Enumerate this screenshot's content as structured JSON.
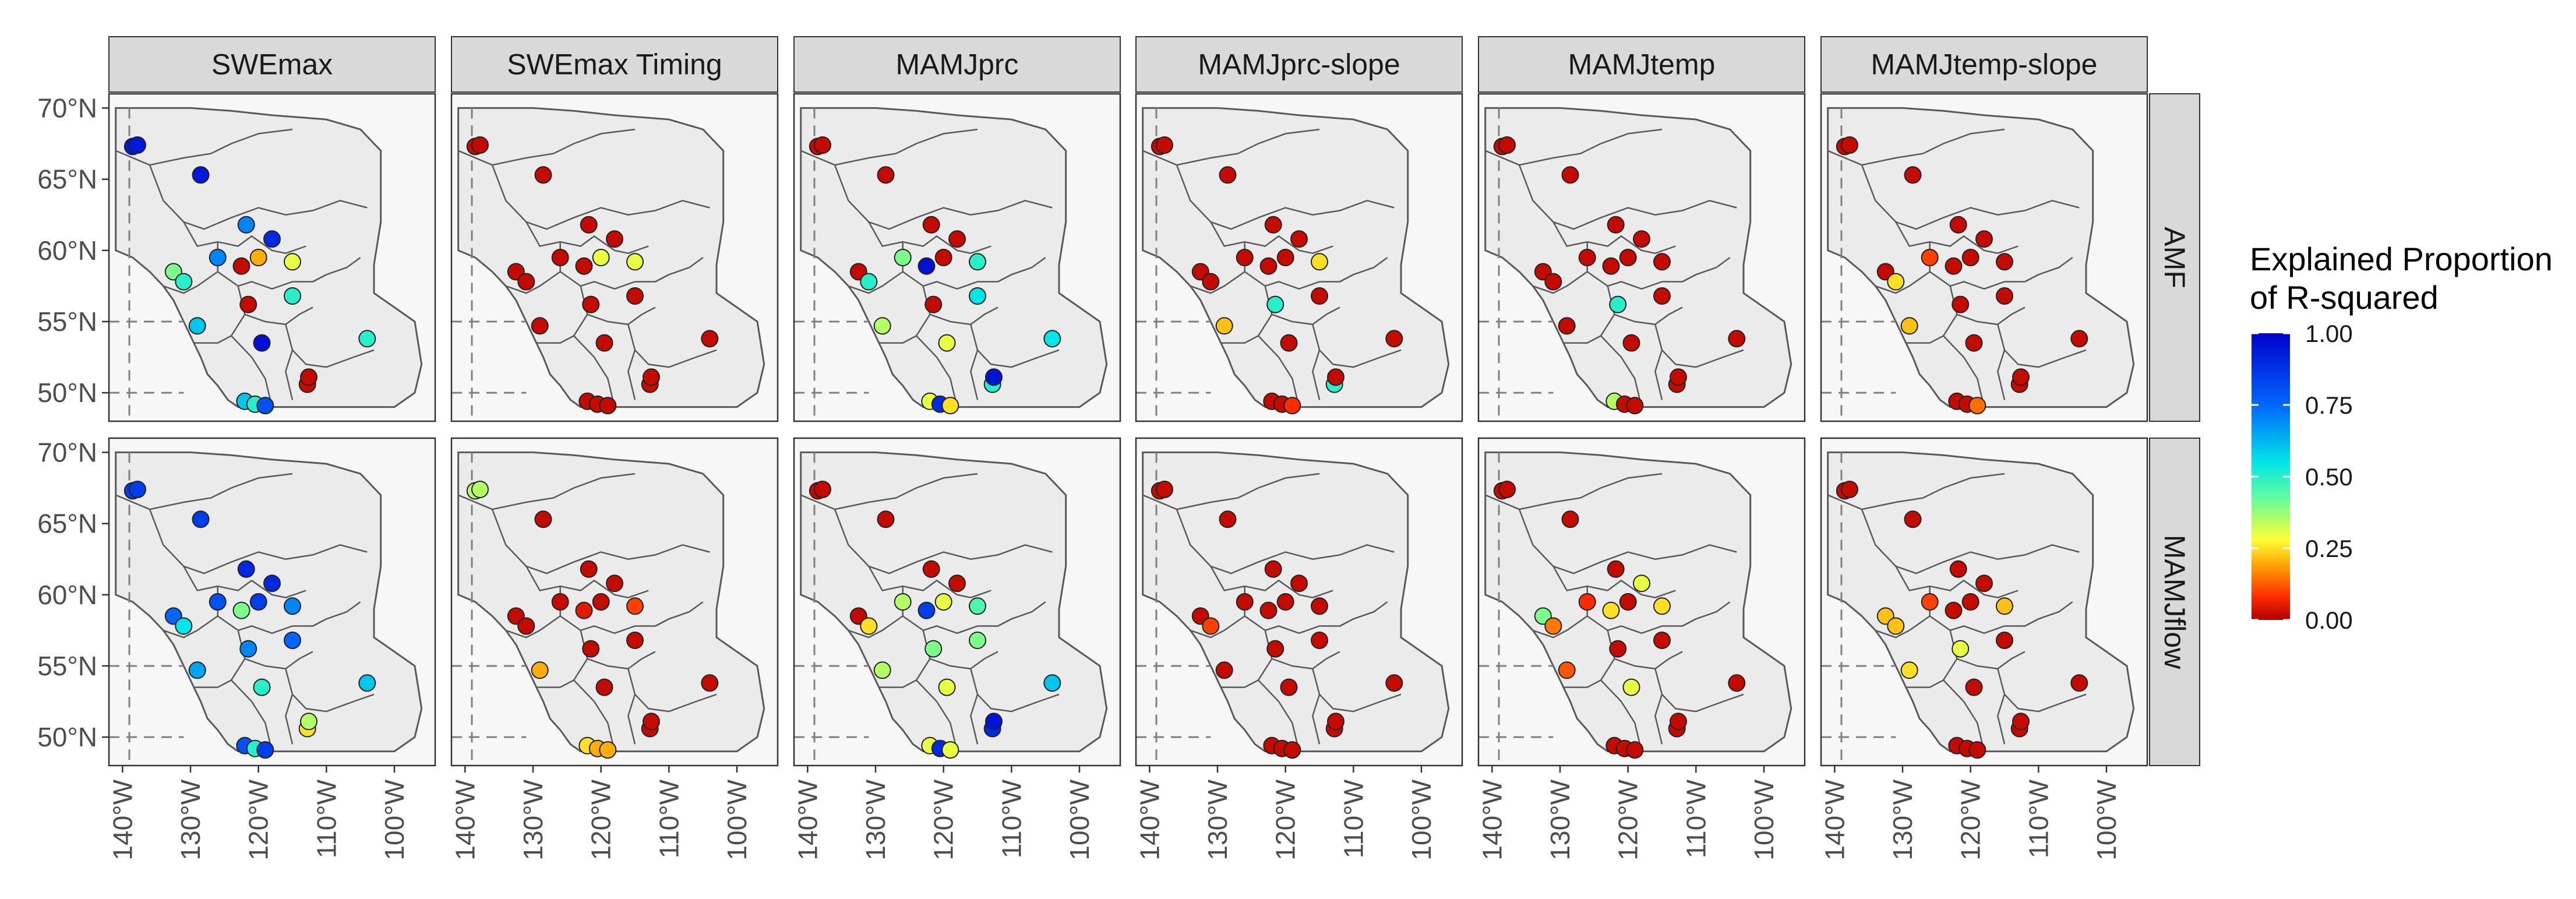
{
  "chart_data": {
    "type": "scatter",
    "subtype": "faceted map",
    "columns": [
      "SWEmax",
      "SWEmax Timing",
      "MAMJprc",
      "MAMJprc-slope",
      "MAMJtemp",
      "MAMJtemp-slope"
    ],
    "rows": [
      "AMF",
      "MAMJflow"
    ],
    "y_ticks": [
      {
        "value": 70,
        "label": "70°N"
      },
      {
        "value": 65,
        "label": "65°N"
      },
      {
        "value": 60,
        "label": "60°N"
      },
      {
        "value": 55,
        "label": "55°N"
      },
      {
        "value": 50,
        "label": "50°N"
      }
    ],
    "x_ticks": [
      {
        "value": -140,
        "label": "140°W"
      },
      {
        "value": -130,
        "label": "130°W"
      },
      {
        "value": -120,
        "label": "120°W"
      },
      {
        "value": -110,
        "label": "110°W"
      },
      {
        "value": -100,
        "label": "100°W"
      }
    ],
    "xlim": [
      -142,
      -94
    ],
    "ylim": [
      48,
      71
    ],
    "legend": {
      "title_line1": "Explained Proportion",
      "title_line2": "of R-squared",
      "ticks": [
        {
          "value": 1.0,
          "label": "1.00"
        },
        {
          "value": 0.75,
          "label": "0.75"
        },
        {
          "value": 0.5,
          "label": "0.50"
        },
        {
          "value": 0.25,
          "label": "0.25"
        },
        {
          "value": 0.0,
          "label": "0.00"
        }
      ],
      "colors": [
        "#b00000",
        "#ff2a00",
        "#ff9900",
        "#ffff33",
        "#66ff99",
        "#00e6e6",
        "#0066ff",
        "#0000cc"
      ]
    },
    "stations": [
      {
        "lon": -138.5,
        "lat": 67.3
      },
      {
        "lon": -137.8,
        "lat": 67.4
      },
      {
        "lon": -128.5,
        "lat": 65.3
      },
      {
        "lon": -121.8,
        "lat": 61.8
      },
      {
        "lon": -118.0,
        "lat": 60.8
      },
      {
        "lon": -132.5,
        "lat": 58.5
      },
      {
        "lon": -131.0,
        "lat": 57.8
      },
      {
        "lon": -126.0,
        "lat": 59.5
      },
      {
        "lon": -122.5,
        "lat": 58.9
      },
      {
        "lon": -120.0,
        "lat": 59.5
      },
      {
        "lon": -115.0,
        "lat": 59.2
      },
      {
        "lon": -121.5,
        "lat": 56.2
      },
      {
        "lon": -115.0,
        "lat": 56.8
      },
      {
        "lon": -129.0,
        "lat": 54.7
      },
      {
        "lon": -119.5,
        "lat": 53.5
      },
      {
        "lon": -112.8,
        "lat": 50.6
      },
      {
        "lon": -112.6,
        "lat": 51.1
      },
      {
        "lon": -104.0,
        "lat": 53.8
      },
      {
        "lon": -122.0,
        "lat": 49.4
      },
      {
        "lon": -120.5,
        "lat": 49.2
      },
      {
        "lon": -119.0,
        "lat": 49.1
      }
    ],
    "values": {
      "AMF": {
        "SWEmax": [
          0.94,
          0.94,
          0.94,
          0.7,
          0.9,
          0.4,
          0.5,
          0.7,
          0.02,
          0.2,
          0.3,
          0.02,
          0.5,
          0.6,
          0.96,
          0.02,
          0.02,
          0.5,
          0.6,
          0.5,
          0.8
        ],
        "SWEmax Timing": [
          0.02,
          0.02,
          0.02,
          0.02,
          0.02,
          0.02,
          0.02,
          0.02,
          0.02,
          0.3,
          0.3,
          0.02,
          0.02,
          0.02,
          0.02,
          0.02,
          0.02,
          0.02,
          0.02,
          0.02,
          0.02
        ],
        "MAMJprc": [
          0.02,
          0.02,
          0.02,
          0.02,
          0.02,
          0.02,
          0.5,
          0.4,
          0.96,
          0.02,
          0.5,
          0.02,
          0.55,
          0.35,
          0.3,
          0.5,
          0.95,
          0.55,
          0.3,
          0.9,
          0.25
        ],
        "MAMJprc-slope": [
          0.02,
          0.02,
          0.02,
          0.02,
          0.02,
          0.02,
          0.02,
          0.02,
          0.02,
          0.02,
          0.25,
          0.5,
          0.02,
          0.22,
          0.02,
          0.5,
          0.02,
          0.02,
          0.02,
          0.02,
          0.08
        ],
        "MAMJtemp": [
          0.02,
          0.02,
          0.02,
          0.02,
          0.02,
          0.02,
          0.02,
          0.02,
          0.02,
          0.02,
          0.02,
          0.5,
          0.02,
          0.02,
          0.02,
          0.02,
          0.02,
          0.02,
          0.35,
          0.02,
          0.02
        ],
        "MAMJtemp-slope": [
          0.02,
          0.02,
          0.02,
          0.02,
          0.02,
          0.02,
          0.25,
          0.1,
          0.02,
          0.02,
          0.02,
          0.02,
          0.02,
          0.22,
          0.02,
          0.02,
          0.02,
          0.02,
          0.02,
          0.02,
          0.14
        ]
      },
      "MAMJflow": {
        "SWEmax": [
          0.85,
          0.85,
          0.85,
          0.9,
          0.9,
          0.75,
          0.55,
          0.8,
          0.4,
          0.85,
          0.7,
          0.7,
          0.75,
          0.65,
          0.5,
          0.25,
          0.35,
          0.6,
          0.8,
          0.5,
          0.85
        ],
        "SWEmax Timing": [
          0.35,
          0.35,
          0.02,
          0.02,
          0.02,
          0.02,
          0.02,
          0.02,
          0.05,
          0.02,
          0.1,
          0.02,
          0.02,
          0.2,
          0.02,
          0.02,
          0.02,
          0.02,
          0.25,
          0.2,
          0.2
        ],
        "MAMJprc": [
          0.02,
          0.02,
          0.02,
          0.02,
          0.02,
          0.02,
          0.25,
          0.35,
          0.85,
          0.3,
          0.45,
          0.4,
          0.4,
          0.35,
          0.3,
          0.9,
          0.95,
          0.6,
          0.3,
          0.9,
          0.3
        ],
        "MAMJprc-slope": [
          0.02,
          0.02,
          0.02,
          0.02,
          0.02,
          0.02,
          0.1,
          0.02,
          0.02,
          0.02,
          0.02,
          0.02,
          0.02,
          0.02,
          0.02,
          0.02,
          0.02,
          0.02,
          0.02,
          0.02,
          0.02
        ],
        "MAMJtemp": [
          0.02,
          0.02,
          0.02,
          0.02,
          0.3,
          0.4,
          0.15,
          0.08,
          0.25,
          0.02,
          0.25,
          0.02,
          0.02,
          0.12,
          0.3,
          0.02,
          0.02,
          0.02,
          0.02,
          0.02,
          0.02
        ],
        "MAMJtemp-slope": [
          0.02,
          0.02,
          0.02,
          0.02,
          0.02,
          0.22,
          0.22,
          0.1,
          0.02,
          0.02,
          0.22,
          0.3,
          0.02,
          0.25,
          0.02,
          0.02,
          0.02,
          0.02,
          0.02,
          0.02,
          0.02
        ]
      }
    }
  }
}
